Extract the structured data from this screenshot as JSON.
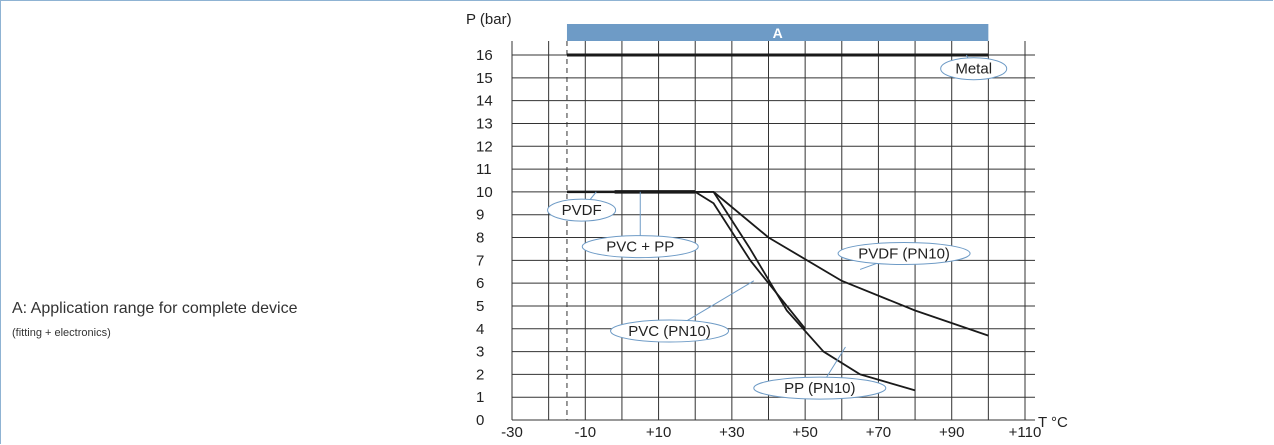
{
  "notes": {
    "main": "A: Application range for complete device",
    "sub": "(fitting + electronics)"
  },
  "colors": {
    "range_band": "#6e9bc6",
    "grid": "#333333",
    "curve": "#1a1a1a",
    "bubble_border": "#6e9bc6"
  },
  "chart_data": {
    "type": "line",
    "ylabel": "P (bar)",
    "xlabel": "T °C",
    "xlim": [
      -30,
      110
    ],
    "ylim": [
      0,
      16
    ],
    "x_ticks": [
      "-30",
      "-10",
      "+10",
      "+30",
      "+50",
      "+70",
      "+90",
      "+110"
    ],
    "x_tick_values": [
      -30,
      -10,
      10,
      30,
      50,
      70,
      90,
      110
    ],
    "y_ticks": [
      "0",
      "1",
      "2",
      "3",
      "4",
      "5",
      "6",
      "7",
      "8",
      "9",
      "10",
      "11",
      "12",
      "13",
      "14",
      "15",
      "16"
    ],
    "grid": true,
    "range_band": {
      "label": "A",
      "x": [
        -15,
        100
      ]
    },
    "dashed_marker_x": -15,
    "series": [
      {
        "name": "Metal",
        "points": [
          [
            -15,
            16
          ],
          [
            100,
            16
          ]
        ]
      },
      {
        "name": "PVDF",
        "points": [
          [
            -15,
            10
          ],
          [
            20,
            10
          ]
        ]
      },
      {
        "name": "PVC + PP",
        "points": [
          [
            -2,
            10
          ],
          [
            20,
            10
          ]
        ]
      },
      {
        "name": "PVDF (PN10)",
        "points": [
          [
            20,
            10
          ],
          [
            25,
            10
          ],
          [
            40,
            8
          ],
          [
            60,
            6.1
          ],
          [
            80,
            4.8
          ],
          [
            100,
            3.7
          ]
        ]
      },
      {
        "name": "PVC (PN10)",
        "points": [
          [
            20,
            10
          ],
          [
            25,
            9.5
          ],
          [
            35,
            7
          ],
          [
            45,
            5
          ],
          [
            50,
            4
          ]
        ]
      },
      {
        "name": "PP (PN10)",
        "points": [
          [
            20,
            10
          ],
          [
            25,
            10
          ],
          [
            35,
            7.5
          ],
          [
            45,
            4.8
          ],
          [
            55,
            3
          ],
          [
            65,
            2
          ],
          [
            80,
            1.3
          ]
        ]
      }
    ]
  }
}
